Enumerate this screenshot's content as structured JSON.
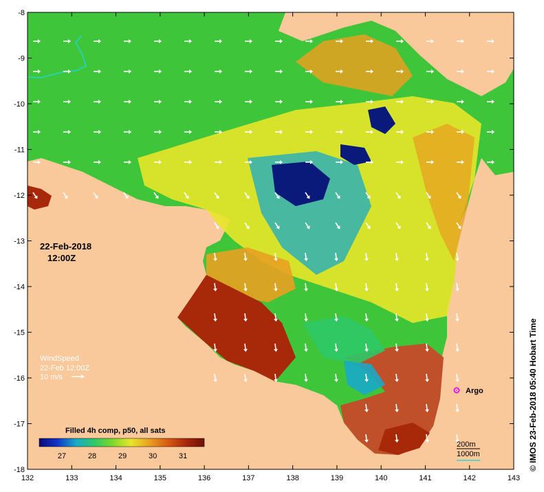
{
  "map": {
    "lon_range": [
      132,
      143
    ],
    "lat_range": [
      -18,
      -8
    ],
    "lon_ticks": [
      "132",
      "133",
      "134",
      "135",
      "136",
      "137",
      "138",
      "139",
      "140",
      "141",
      "142",
      "143"
    ],
    "lat_ticks": [
      "-8",
      "-9",
      "-10",
      "-11",
      "-12",
      "-13",
      "-14",
      "-15",
      "-16",
      "-17",
      "-18"
    ],
    "land_color": "#f9c89b",
    "colors": {
      "green": "#3fc53a",
      "yellow": "#e8e62a",
      "orange": "#e8a021",
      "red_brown": "#a8280a",
      "cyan": "#1aa9c8",
      "navy": "#0a1a7a"
    }
  },
  "date": {
    "line1": "22-Feb-2018",
    "line2": "12:00Z"
  },
  "wind_legend": {
    "title": "WindSpeed",
    "time": "22-Feb 12:00Z",
    "scale": "10 m/s"
  },
  "colorbar": {
    "title": "Filled 4h comp, p50, all sats",
    "ticks": [
      "27",
      "28",
      "29",
      "30",
      "31"
    ],
    "stops": [
      "#0a0a78",
      "#1236c8",
      "#1aa9c8",
      "#2ec868",
      "#7fd82a",
      "#e8e62a",
      "#e8a021",
      "#d85a10",
      "#a8280a",
      "#6e1005"
    ]
  },
  "argo": {
    "label": "Argo"
  },
  "contours": {
    "line1": "200m",
    "line2": "1000m"
  },
  "credit": "© IMOS 23-Feb-2018 05:40 Hobart Time"
}
